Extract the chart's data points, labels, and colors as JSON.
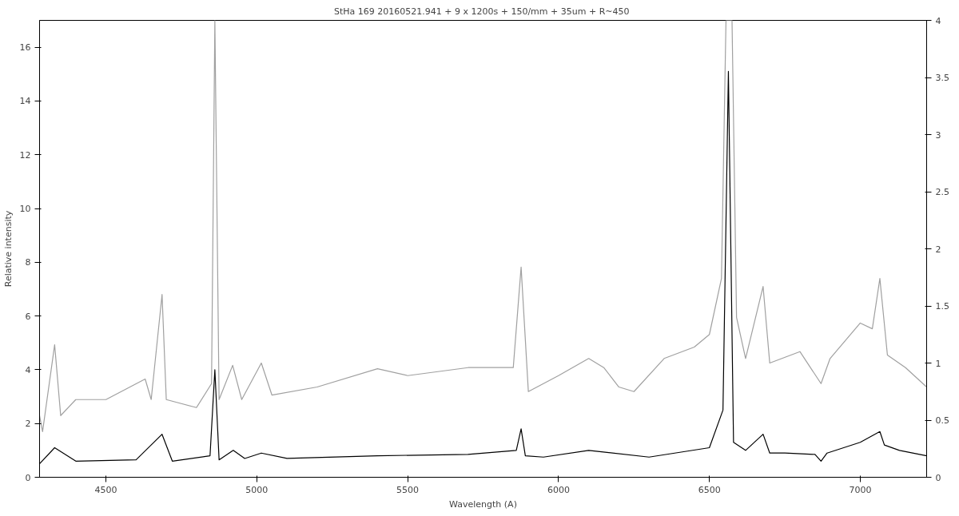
{
  "chart_data": {
    "type": "line",
    "title": "StHa 169 20160521.941 + 9  x 1200s + 150/mm + 35um + R~450",
    "xlabel": "Wavelength (A)",
    "ylabel": "Relative intensity",
    "xlim": [
      4280,
      7220
    ],
    "xticks": [
      4500,
      5000,
      5500,
      6000,
      6500,
      7000
    ],
    "ylim": [
      0,
      17
    ],
    "yticks": [
      0,
      2,
      4,
      6,
      8,
      10,
      12,
      14,
      16
    ],
    "y2lim": [
      0,
      4
    ],
    "y2ticks": [
      0,
      0.5,
      1,
      1.5,
      2,
      2.5,
      3,
      3.5,
      4
    ],
    "grid": false,
    "series": [
      {
        "color": "#a0a0a0",
        "axis": "y2",
        "x": [
          4280,
          4290,
          4330,
          4350,
          4400,
          4500,
          4630,
          4650,
          4686,
          4700,
          4800,
          4850,
          4861,
          4875,
          4920,
          4950,
          5015,
          5050,
          5200,
          5400,
          5500,
          5700,
          5850,
          5876,
          5900,
          6000,
          6100,
          6150,
          6200,
          6250,
          6350,
          6450,
          6500,
          6540,
          6555,
          6575,
          6590,
          6620,
          6678,
          6700,
          6800,
          6870,
          6900,
          7000,
          7040,
          7065,
          7090,
          7150,
          7220
        ],
        "values": [
          0.54,
          0.4,
          1.16,
          0.54,
          0.68,
          0.68,
          0.86,
          0.68,
          1.6,
          0.68,
          0.61,
          0.82,
          4.0,
          0.68,
          0.98,
          0.68,
          1.0,
          0.72,
          0.79,
          0.95,
          0.89,
          0.96,
          0.96,
          1.84,
          0.75,
          0.89,
          1.04,
          0.96,
          0.79,
          0.75,
          1.04,
          1.14,
          1.25,
          1.74,
          4.0,
          4.0,
          1.4,
          1.04,
          1.67,
          1.0,
          1.1,
          0.82,
          1.04,
          1.35,
          1.3,
          1.74,
          1.07,
          0.96,
          0.79
        ]
      },
      {
        "color": "#000000",
        "x": [
          4280,
          4330,
          4400,
          4600,
          4686,
          4720,
          4845,
          4861,
          4875,
          4922,
          4960,
          5015,
          5100,
          5400,
          5700,
          5860,
          5876,
          5890,
          5950,
          6100,
          6300,
          6500,
          6545,
          6563,
          6580,
          6620,
          6678,
          6700,
          6750,
          6850,
          6870,
          6890,
          7000,
          7065,
          7080,
          7130,
          7220
        ],
        "values": [
          0.5,
          1.1,
          0.6,
          0.65,
          1.6,
          0.6,
          0.8,
          4.0,
          0.65,
          1.0,
          0.7,
          0.9,
          0.7,
          0.8,
          0.85,
          1.0,
          1.8,
          0.8,
          0.75,
          1.0,
          0.75,
          1.1,
          2.5,
          15.1,
          1.3,
          1.0,
          1.6,
          0.9,
          0.9,
          0.85,
          0.6,
          0.9,
          1.3,
          1.7,
          1.2,
          1.0,
          0.8
        ]
      }
    ]
  }
}
